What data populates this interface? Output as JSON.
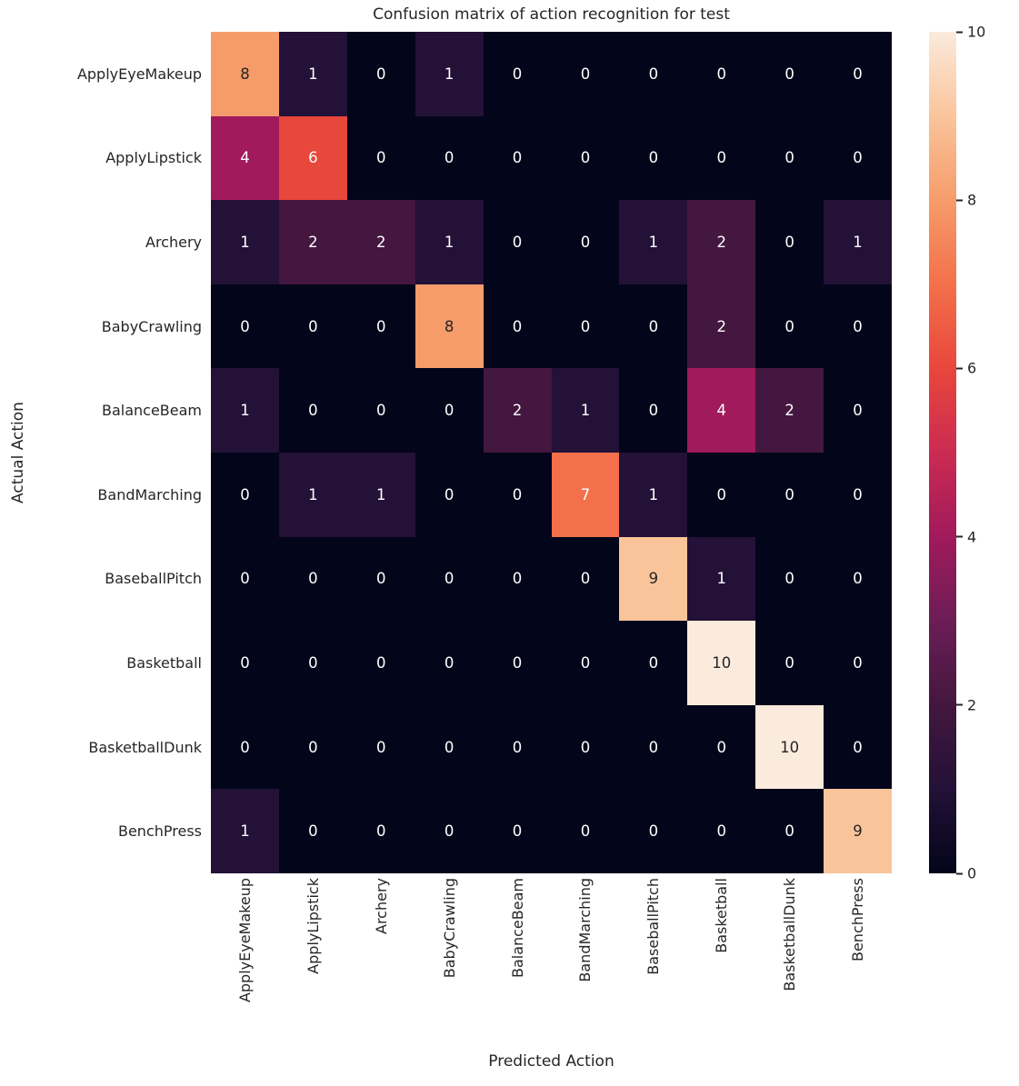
{
  "chart_data": {
    "type": "heatmap",
    "title": "Confusion matrix of action recognition for test",
    "xlabel": "Predicted Action",
    "ylabel": "Actual Action",
    "categories": [
      "ApplyEyeMakeup",
      "ApplyLipstick",
      "Archery",
      "BabyCrawling",
      "BalanceBeam",
      "BandMarching",
      "BaseballPitch",
      "Basketball",
      "BasketballDunk",
      "BenchPress"
    ],
    "matrix": [
      [
        8,
        1,
        0,
        1,
        0,
        0,
        0,
        0,
        0,
        0
      ],
      [
        4,
        6,
        0,
        0,
        0,
        0,
        0,
        0,
        0,
        0
      ],
      [
        1,
        2,
        2,
        1,
        0,
        0,
        1,
        2,
        0,
        1
      ],
      [
        0,
        0,
        0,
        8,
        0,
        0,
        0,
        2,
        0,
        0
      ],
      [
        1,
        0,
        0,
        0,
        2,
        1,
        0,
        4,
        2,
        0
      ],
      [
        0,
        1,
        1,
        0,
        0,
        7,
        1,
        0,
        0,
        0
      ],
      [
        0,
        0,
        0,
        0,
        0,
        0,
        9,
        1,
        0,
        0
      ],
      [
        0,
        0,
        0,
        0,
        0,
        0,
        0,
        10,
        0,
        0
      ],
      [
        0,
        0,
        0,
        0,
        0,
        0,
        0,
        0,
        10,
        0
      ],
      [
        1,
        0,
        0,
        0,
        0,
        0,
        0,
        0,
        0,
        9
      ]
    ],
    "vmin": 0,
    "vmax": 10,
    "colorbar_ticks": [
      0,
      2,
      4,
      6,
      8,
      10
    ],
    "colormap": {
      "name": "rocket",
      "stops": [
        "#03051A",
        "#231137",
        "#43173F",
        "#6C1D56",
        "#A11A5C",
        "#CB2B51",
        "#E8473C",
        "#F3704A",
        "#F69C6B",
        "#FAC49B",
        "#FAEBDD"
      ]
    },
    "annotation_colors": {
      "on_dark": "#FFFFFF",
      "on_light": "#262626"
    },
    "text_color": "#262626",
    "background": "#FFFFFF",
    "grid": false,
    "legend_position": "right-colorbar"
  }
}
